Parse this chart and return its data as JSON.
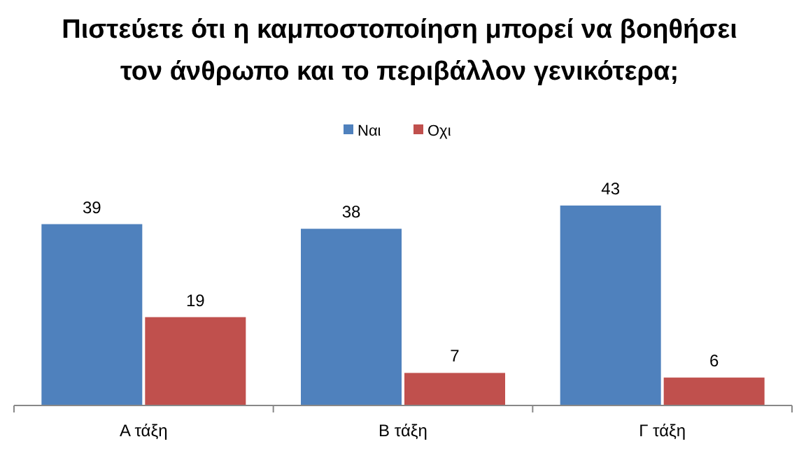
{
  "chart_data": {
    "type": "bar",
    "title": "Πιστεύετε ότι η καμποστοποίηση μπορεί να βοηθήσει\nτον άνθρωπο και το περιβάλλον γενικότερα;",
    "categories": [
      "Α τάξη",
      "Β τάξη",
      "Γ τάξη"
    ],
    "series": [
      {
        "name": "Ναι",
        "color": "#4f81bd",
        "values": [
          39,
          38,
          43
        ]
      },
      {
        "name": "Οχι",
        "color": "#c0504d",
        "values": [
          19,
          7,
          6
        ]
      }
    ],
    "data_labels": true,
    "legend": "top",
    "grid": false
  }
}
